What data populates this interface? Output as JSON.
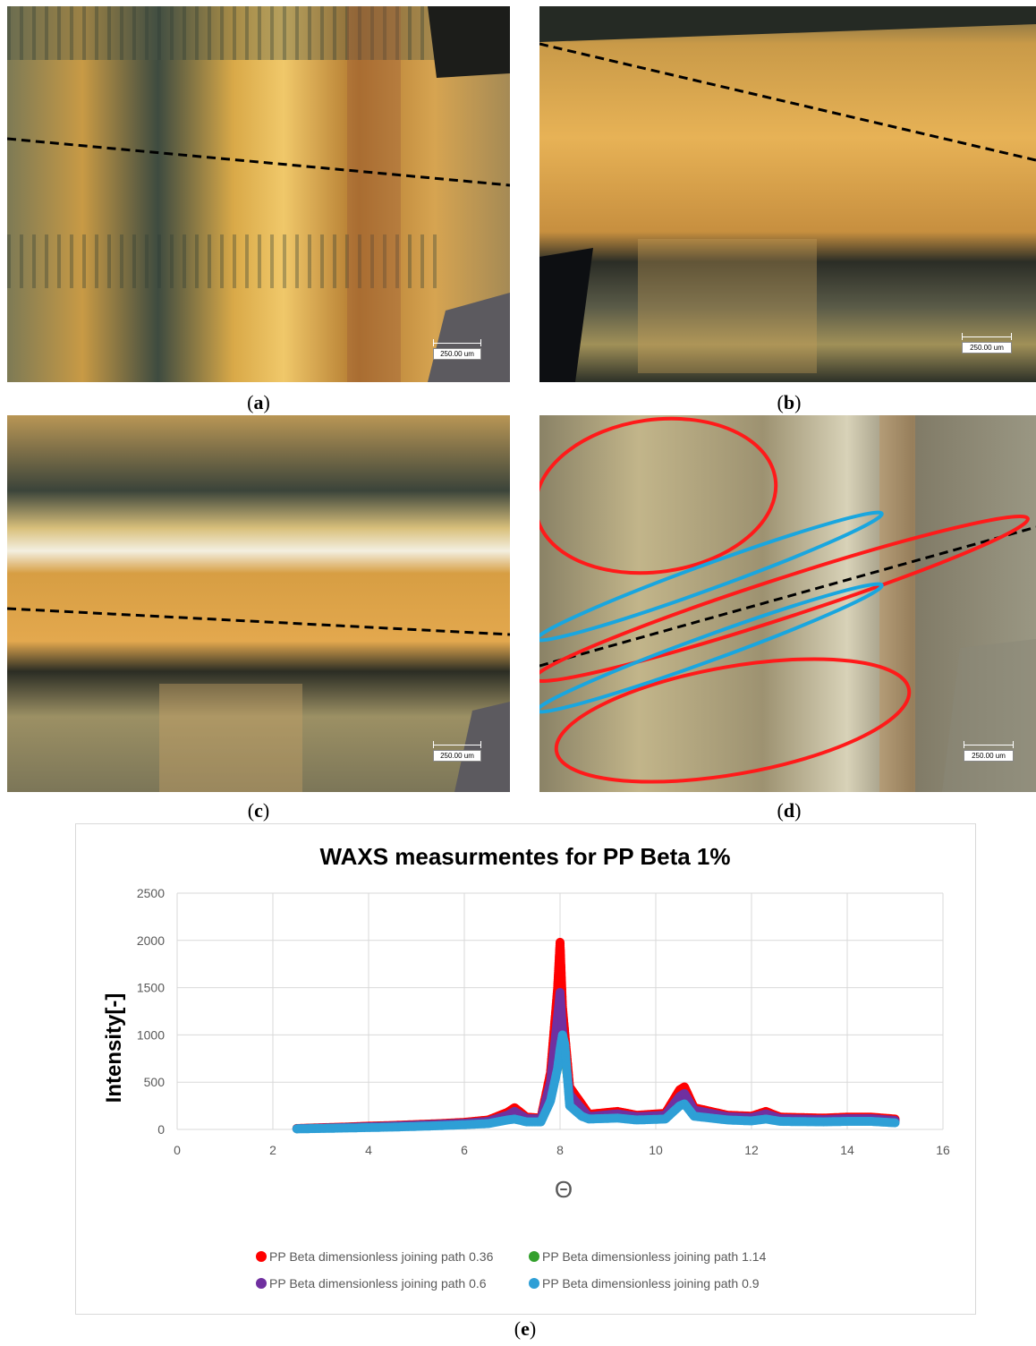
{
  "panels": [
    {
      "id": "a",
      "caption": "a",
      "scale": "250.00 um"
    },
    {
      "id": "b",
      "caption": "b",
      "scale": "250.00 um"
    },
    {
      "id": "c",
      "caption": "c",
      "scale": "250.00 um"
    },
    {
      "id": "d",
      "caption": "d",
      "scale": "250.00 um"
    }
  ],
  "caption_e": "e",
  "colors": {
    "series_036": "#ff0000",
    "series_114": "#33a02c",
    "series_06": "#7030a0",
    "series_09": "#2e9fd6",
    "grid": "#d9d9d9",
    "annot_red": "#ff1a1a",
    "annot_blue": "#19a6df"
  },
  "chart_data": {
    "type": "scatter",
    "title": "WAXS measurmentes for PP Beta 1%",
    "xlabel": "Θ",
    "ylabel": "Intensity[-]",
    "xlim": [
      0,
      16
    ],
    "ylim": [
      0,
      2500
    ],
    "xticks": [
      "0",
      "2",
      "4",
      "6",
      "8",
      "10",
      "12",
      "14",
      "16"
    ],
    "yticks": [
      "0",
      "500",
      "1000",
      "1500",
      "2000",
      "2500"
    ],
    "grid": true,
    "legend_position": "bottom",
    "series": [
      {
        "name": "PP Beta dimensionless joining path 0.36",
        "color": "#ff0000",
        "x": [
          2.5,
          3,
          3.5,
          4,
          4.5,
          5,
          5.5,
          6,
          6.5,
          6.9,
          7.05,
          7.3,
          7.6,
          7.8,
          7.95,
          8.0,
          8.05,
          8.2,
          8.45,
          8.6,
          9.2,
          9.6,
          10.2,
          10.5,
          10.6,
          10.8,
          11.5,
          12.0,
          12.3,
          12.6,
          13.5,
          14.0,
          14.5,
          15.0
        ],
        "y": [
          10,
          18,
          25,
          35,
          42,
          52,
          62,
          75,
          100,
          180,
          230,
          130,
          120,
          600,
          1500,
          1980,
          1300,
          450,
          270,
          160,
          190,
          150,
          170,
          420,
          450,
          230,
          150,
          140,
          190,
          130,
          120,
          130,
          130,
          110
        ]
      },
      {
        "name": "PP Beta dimensionless joining path 1.14",
        "color": "#33a02c",
        "x": [
          2.5,
          3,
          3.5,
          4,
          4.5,
          5,
          5.5,
          6,
          6.5,
          6.9,
          7.05,
          7.3,
          7.6,
          7.8,
          7.95,
          8.0,
          8.05,
          8.2,
          8.45,
          8.6,
          9.2,
          9.6,
          10.2,
          10.5,
          10.6,
          10.8,
          11.5,
          12.0,
          12.3,
          12.6,
          13.5,
          14.0,
          14.5,
          15.0
        ],
        "y": [
          8,
          14,
          20,
          28,
          35,
          45,
          55,
          65,
          85,
          150,
          190,
          115,
          110,
          480,
          1150,
          1400,
          1000,
          360,
          210,
          130,
          160,
          130,
          150,
          340,
          370,
          200,
          130,
          120,
          160,
          110,
          100,
          110,
          110,
          90
        ]
      },
      {
        "name": "PP Beta dimensionless joining path 0.6",
        "color": "#7030a0",
        "x": [
          2.5,
          3,
          3.5,
          4,
          4.5,
          5,
          5.5,
          6,
          6.5,
          6.9,
          7.05,
          7.3,
          7.6,
          7.8,
          7.95,
          8.0,
          8.05,
          8.2,
          8.45,
          8.6,
          9.2,
          9.6,
          10.2,
          10.5,
          10.6,
          10.8,
          11.5,
          12.0,
          12.3,
          12.6,
          13.5,
          14.0,
          14.5,
          15.0
        ],
        "y": [
          8,
          14,
          20,
          28,
          35,
          45,
          55,
          65,
          85,
          150,
          190,
          115,
          110,
          500,
          1200,
          1450,
          1050,
          370,
          220,
          135,
          165,
          135,
          150,
          350,
          380,
          205,
          135,
          125,
          165,
          115,
          105,
          115,
          115,
          95
        ]
      },
      {
        "name": "PP Beta dimensionless joining path 0.9",
        "color": "#2e9fd6",
        "x": [
          2.5,
          3,
          3.5,
          4,
          4.5,
          5,
          5.5,
          6,
          6.5,
          6.9,
          7.05,
          7.3,
          7.6,
          7.8,
          7.95,
          8.0,
          8.05,
          8.1,
          8.2,
          8.45,
          8.6,
          9.2,
          9.6,
          10.2,
          10.5,
          10.6,
          10.8,
          11.5,
          12.0,
          12.3,
          12.6,
          13.5,
          14.0,
          14.5,
          15.0
        ],
        "y": [
          6,
          10,
          15,
          20,
          25,
          32,
          40,
          50,
          62,
          100,
          110,
          80,
          80,
          300,
          650,
          850,
          1000,
          900,
          250,
          140,
          110,
          120,
          100,
          110,
          250,
          270,
          140,
          100,
          90,
          110,
          85,
          80,
          85,
          85,
          70
        ]
      }
    ]
  },
  "legend": {
    "row1": [
      "PP Beta dimensionless joining path 0.36",
      "PP Beta dimensionless joining path 1.14"
    ],
    "row2": [
      "PP Beta dimensionless joining path 0.6",
      "PP Beta dimensionless joining path 0.9"
    ]
  }
}
